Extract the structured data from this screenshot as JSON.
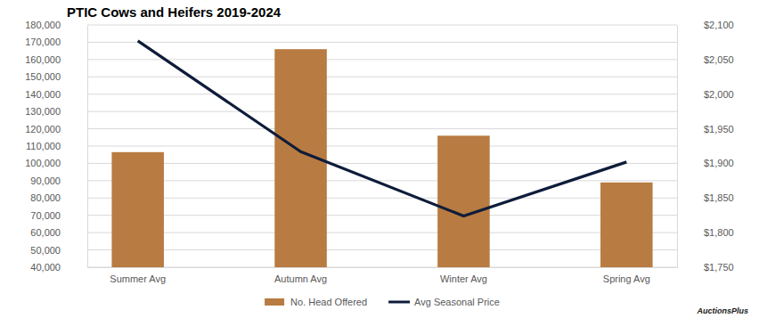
{
  "chart_data": {
    "type": "bar",
    "title": "PTIC Cows and Heifers 2019-2024",
    "categories": [
      "Summer Avg",
      "Autumn Avg",
      "Winter Avg",
      "Spring Avg"
    ],
    "series": [
      {
        "name": "No. Head Offered",
        "type": "bar",
        "color": "#b87b41",
        "values": [
          106500,
          166000,
          116000,
          89000
        ]
      },
      {
        "name": "Avg Seasonal Price",
        "type": "line",
        "color": "#0e1c3a",
        "axis": "y2",
        "values": [
          2077,
          1917,
          1824,
          1902
        ]
      }
    ],
    "ylim": [
      40000,
      180000
    ],
    "yticks": [
      {
        "value": 40000,
        "label": "40,000"
      },
      {
        "value": 50000,
        "label": "50,000"
      },
      {
        "value": 60000,
        "label": "60,000"
      },
      {
        "value": 70000,
        "label": "70,000"
      },
      {
        "value": 80000,
        "label": "80,000"
      },
      {
        "value": 90000,
        "label": "90,000"
      },
      {
        "value": 100000,
        "label": "100,000"
      },
      {
        "value": 110000,
        "label": "110,000"
      },
      {
        "value": 120000,
        "label": "120,000"
      },
      {
        "value": 130000,
        "label": "130,000"
      },
      {
        "value": 140000,
        "label": "140,000"
      },
      {
        "value": 150000,
        "label": "150,000"
      },
      {
        "value": 160000,
        "label": "160,000"
      },
      {
        "value": 170000,
        "label": "170,000"
      },
      {
        "value": 180000,
        "label": "180,000"
      }
    ],
    "y2lim": [
      1750,
      2100
    ],
    "y2ticks": [
      {
        "value": 1750,
        "label": "$1,750"
      },
      {
        "value": 1800,
        "label": "$1,800"
      },
      {
        "value": 1850,
        "label": "$1,850"
      },
      {
        "value": 1900,
        "label": "$1,900"
      },
      {
        "value": 1950,
        "label": "$1,950"
      },
      {
        "value": 2000,
        "label": "$2,000"
      },
      {
        "value": 2050,
        "label": "$2,050"
      },
      {
        "value": 2100,
        "label": "$2,100"
      }
    ],
    "grid": true,
    "legend": "bottom",
    "annotations": [
      "AuctionsPlus"
    ]
  }
}
